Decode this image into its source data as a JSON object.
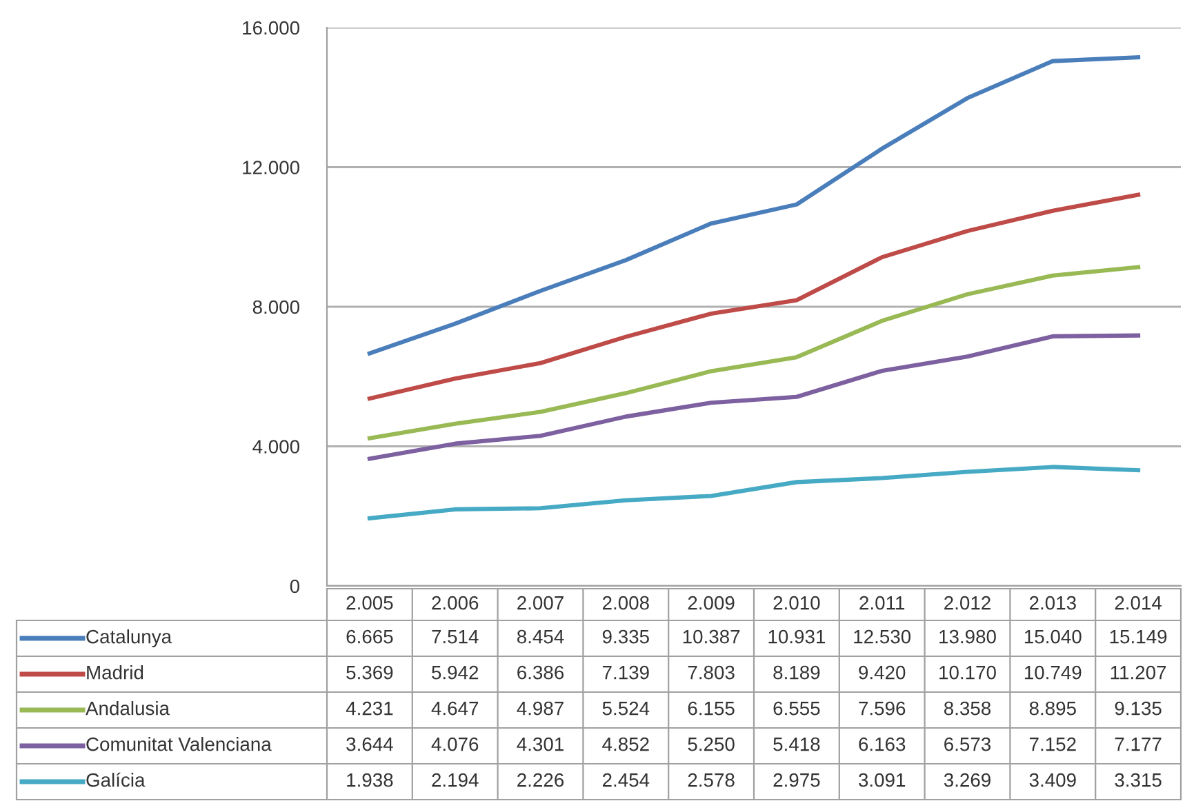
{
  "chart_data": {
    "type": "line",
    "categories": [
      "2.005",
      "2.006",
      "2.007",
      "2.008",
      "2.009",
      "2.010",
      "2.011",
      "2.012",
      "2.013",
      "2.014"
    ],
    "series": [
      {
        "name": "Catalunya",
        "color": "#4a7ebb",
        "values": [
          6665,
          7514,
          8454,
          9335,
          10387,
          10931,
          12530,
          13980,
          15040,
          15149
        ],
        "value_labels": [
          "6.665",
          "7.514",
          "8.454",
          "9.335",
          "10.387",
          "10.931",
          "12.530",
          "13.980",
          "15.040",
          "15.149"
        ]
      },
      {
        "name": "Madrid",
        "color": "#be4b48",
        "values": [
          5369,
          5942,
          6386,
          7139,
          7803,
          8189,
          9420,
          10170,
          10749,
          11207
        ],
        "value_labels": [
          "5.369",
          "5.942",
          "6.386",
          "7.139",
          "7.803",
          "8.189",
          "9.420",
          "10.170",
          "10.749",
          "11.207"
        ]
      },
      {
        "name": "Andalusia",
        "color": "#98b954",
        "values": [
          4231,
          4647,
          4987,
          5524,
          6155,
          6555,
          7596,
          8358,
          8895,
          9135
        ],
        "value_labels": [
          "4.231",
          "4.647",
          "4.987",
          "5.524",
          "6.155",
          "6.555",
          "7.596",
          "8.358",
          "8.895",
          "9.135"
        ]
      },
      {
        "name": "Comunitat Valenciana",
        "color": "#7d60a0",
        "values": [
          3644,
          4076,
          4301,
          4852,
          5250,
          5418,
          6163,
          6573,
          7152,
          7177
        ],
        "value_labels": [
          "3.644",
          "4.076",
          "4.301",
          "4.852",
          "5.250",
          "5.418",
          "6.163",
          "6.573",
          "7.152",
          "7.177"
        ]
      },
      {
        "name": "Galícia",
        "color": "#46aac5",
        "values": [
          1938,
          2194,
          2226,
          2454,
          2578,
          2975,
          3091,
          3269,
          3409,
          3315
        ],
        "value_labels": [
          "1.938",
          "2.194",
          "2.226",
          "2.454",
          "2.578",
          "2.975",
          "3.091",
          "3.269",
          "3.409",
          "3.315"
        ]
      }
    ],
    "ylim": [
      0,
      16000
    ],
    "yticks": [
      0,
      {
        "value": 4000,
        "label": "4.000"
      },
      {
        "value": 8000,
        "label": "8.000"
      },
      {
        "value": 12000,
        "label": "12.000"
      },
      {
        "value": 16000,
        "label": "16.000"
      }
    ],
    "grid": "y",
    "legend": "bottom",
    "marker": "none",
    "line_style": "solid"
  }
}
